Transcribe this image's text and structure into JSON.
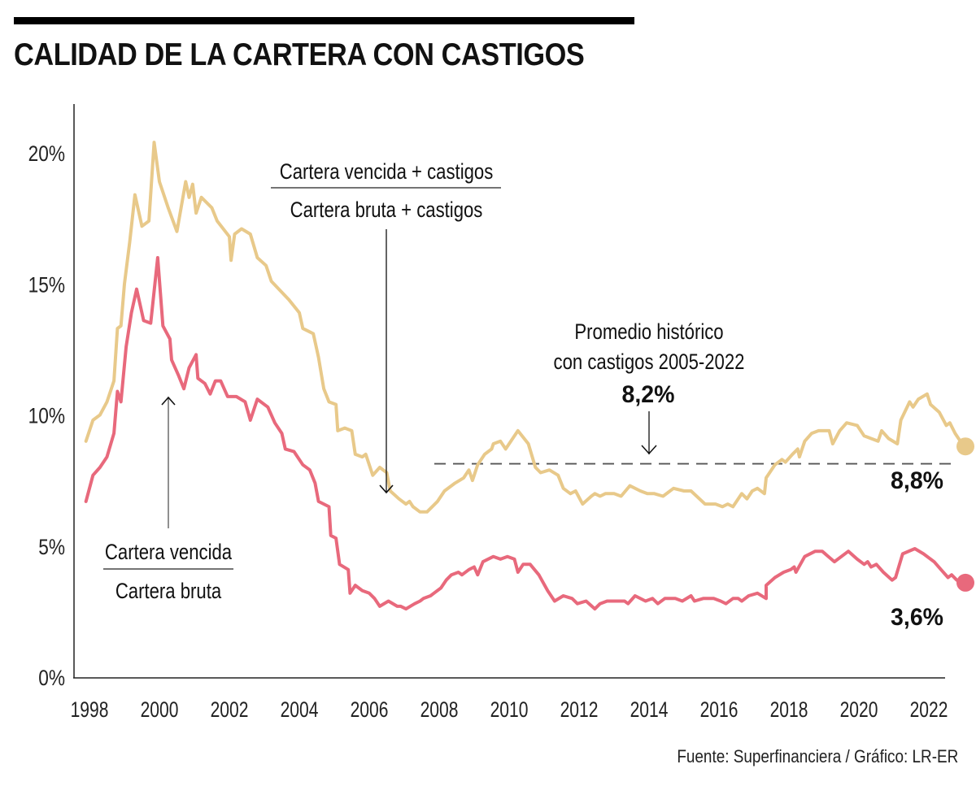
{
  "chart_data": {
    "type": "line",
    "title": "CALIDAD DE LA CARTERA CON CASTIGOS",
    "source": "Fuente: Superfinanciera / Gráfico: LR-ER",
    "xlabel": "",
    "ylabel": "",
    "xlim": [
      1998,
      2022.75
    ],
    "ylim": [
      0,
      20
    ],
    "grid": false,
    "x_ticks": [
      "1998",
      "2000",
      "2002",
      "2004",
      "2006",
      "2008",
      "2010",
      "2012",
      "2014",
      "2016",
      "2018",
      "2020",
      "2022"
    ],
    "y_ticks": [
      "0%",
      "5%",
      "10%",
      "15%",
      "20%"
    ],
    "series": [
      {
        "name": "Cartera vencida + castigos / Cartera bruta + castigos",
        "color": "#e8c98a",
        "end_label": "8,8%",
        "end_value": 8.8,
        "points": [
          [
            1997.9,
            9.0
          ],
          [
            1998.1,
            9.8
          ],
          [
            1998.3,
            10.0
          ],
          [
            1998.5,
            10.5
          ],
          [
            1998.7,
            11.3
          ],
          [
            1998.8,
            13.3
          ],
          [
            1998.9,
            13.4
          ],
          [
            1999.0,
            15.0
          ],
          [
            1999.15,
            16.6
          ],
          [
            1999.3,
            18.4
          ],
          [
            1999.5,
            17.2
          ],
          [
            1999.7,
            17.4
          ],
          [
            1999.85,
            20.4
          ],
          [
            2000.0,
            18.9
          ],
          [
            2000.25,
            17.9
          ],
          [
            2000.5,
            17.0
          ],
          [
            2000.75,
            18.9
          ],
          [
            2000.85,
            18.3
          ],
          [
            2000.95,
            18.8
          ],
          [
            2001.05,
            17.7
          ],
          [
            2001.2,
            18.3
          ],
          [
            2001.5,
            17.9
          ],
          [
            2001.65,
            17.4
          ],
          [
            2002.0,
            16.8
          ],
          [
            2002.05,
            15.9
          ],
          [
            2002.15,
            16.9
          ],
          [
            2002.35,
            17.1
          ],
          [
            2002.6,
            16.9
          ],
          [
            2002.8,
            16.0
          ],
          [
            2003.05,
            15.7
          ],
          [
            2003.2,
            15.1
          ],
          [
            2003.7,
            14.4
          ],
          [
            2004.0,
            13.9
          ],
          [
            2004.1,
            13.3
          ],
          [
            2004.4,
            13.1
          ],
          [
            2004.55,
            12.2
          ],
          [
            2004.7,
            11.0
          ],
          [
            2004.85,
            10.5
          ],
          [
            2005.05,
            10.4
          ],
          [
            2005.1,
            9.4
          ],
          [
            2005.3,
            9.5
          ],
          [
            2005.5,
            9.4
          ],
          [
            2005.6,
            8.5
          ],
          [
            2005.8,
            8.4
          ],
          [
            2005.9,
            8.5
          ],
          [
            2006.1,
            7.7
          ],
          [
            2006.3,
            8.0
          ],
          [
            2006.5,
            7.8
          ],
          [
            2006.6,
            7.1
          ],
          [
            2006.85,
            6.8
          ],
          [
            2007.05,
            6.6
          ],
          [
            2007.15,
            6.7
          ],
          [
            2007.25,
            6.5
          ],
          [
            2007.45,
            6.3
          ],
          [
            2007.65,
            6.3
          ],
          [
            2007.95,
            6.7
          ],
          [
            2008.15,
            7.1
          ],
          [
            2008.45,
            7.4
          ],
          [
            2008.7,
            7.6
          ],
          [
            2008.85,
            7.9
          ],
          [
            2008.95,
            7.5
          ],
          [
            2009.1,
            8.1
          ],
          [
            2009.3,
            8.5
          ],
          [
            2009.5,
            8.7
          ],
          [
            2009.55,
            8.9
          ],
          [
            2009.75,
            9.0
          ],
          [
            2009.9,
            8.7
          ],
          [
            2010.25,
            9.4
          ],
          [
            2010.55,
            8.9
          ],
          [
            2010.75,
            8.0
          ],
          [
            2010.9,
            7.8
          ],
          [
            2011.15,
            7.9
          ],
          [
            2011.4,
            7.7
          ],
          [
            2011.55,
            7.2
          ],
          [
            2011.75,
            7.0
          ],
          [
            2011.9,
            7.1
          ],
          [
            2012.1,
            6.6
          ],
          [
            2012.35,
            6.9
          ],
          [
            2012.45,
            7.0
          ],
          [
            2012.6,
            6.9
          ],
          [
            2012.75,
            7.0
          ],
          [
            2013.0,
            7.0
          ],
          [
            2013.2,
            6.9
          ],
          [
            2013.45,
            7.3
          ],
          [
            2013.75,
            7.1
          ],
          [
            2013.95,
            7.0
          ],
          [
            2014.15,
            7.0
          ],
          [
            2014.4,
            6.9
          ],
          [
            2014.7,
            7.2
          ],
          [
            2015.0,
            7.1
          ],
          [
            2015.2,
            7.1
          ],
          [
            2015.6,
            6.6
          ],
          [
            2015.9,
            6.6
          ],
          [
            2016.1,
            6.5
          ],
          [
            2016.25,
            6.6
          ],
          [
            2016.4,
            6.5
          ],
          [
            2016.65,
            7.0
          ],
          [
            2016.8,
            6.8
          ],
          [
            2016.95,
            7.1
          ],
          [
            2017.1,
            7.2
          ],
          [
            2017.3,
            7.0
          ],
          [
            2017.35,
            7.6
          ],
          [
            2017.6,
            8.1
          ],
          [
            2017.8,
            8.3
          ],
          [
            2017.9,
            8.2
          ],
          [
            2018.1,
            8.5
          ],
          [
            2018.25,
            8.7
          ],
          [
            2018.3,
            8.4
          ],
          [
            2018.45,
            9.0
          ],
          [
            2018.65,
            9.3
          ],
          [
            2018.85,
            9.4
          ],
          [
            2019.15,
            9.4
          ],
          [
            2019.25,
            8.9
          ],
          [
            2019.45,
            9.4
          ],
          [
            2019.65,
            9.7
          ],
          [
            2019.95,
            9.6
          ],
          [
            2020.15,
            9.2
          ],
          [
            2020.55,
            9.0
          ],
          [
            2020.65,
            9.4
          ],
          [
            2020.85,
            9.1
          ],
          [
            2021.1,
            8.9
          ],
          [
            2021.2,
            9.8
          ],
          [
            2021.45,
            10.5
          ],
          [
            2021.55,
            10.3
          ],
          [
            2021.7,
            10.6
          ],
          [
            2021.95,
            10.8
          ],
          [
            2022.05,
            10.4
          ],
          [
            2022.3,
            10.1
          ],
          [
            2022.5,
            9.6
          ],
          [
            2022.6,
            9.7
          ],
          [
            2022.75,
            9.3
          ],
          [
            2023.0,
            8.8
          ]
        ]
      },
      {
        "name": "Cartera vencida / Cartera bruta",
        "color": "#e8697c",
        "end_label": "3,6%",
        "end_value": 3.6,
        "points": [
          [
            1997.9,
            6.7
          ],
          [
            1998.1,
            7.7
          ],
          [
            1998.3,
            8.0
          ],
          [
            1998.5,
            8.4
          ],
          [
            1998.7,
            9.3
          ],
          [
            1998.8,
            10.9
          ],
          [
            1998.9,
            10.5
          ],
          [
            1999.05,
            12.6
          ],
          [
            1999.2,
            13.9
          ],
          [
            1999.35,
            14.8
          ],
          [
            1999.55,
            13.6
          ],
          [
            1999.75,
            13.5
          ],
          [
            1999.95,
            16.0
          ],
          [
            2000.1,
            13.4
          ],
          [
            2000.3,
            12.9
          ],
          [
            2000.35,
            12.1
          ],
          [
            2000.55,
            11.5
          ],
          [
            2000.7,
            11.0
          ],
          [
            2000.85,
            11.8
          ],
          [
            2001.05,
            12.3
          ],
          [
            2001.1,
            11.4
          ],
          [
            2001.3,
            11.2
          ],
          [
            2001.45,
            10.8
          ],
          [
            2001.6,
            11.3
          ],
          [
            2001.75,
            11.3
          ],
          [
            2001.95,
            10.7
          ],
          [
            2002.2,
            10.7
          ],
          [
            2002.45,
            10.5
          ],
          [
            2002.6,
            9.8
          ],
          [
            2002.8,
            10.6
          ],
          [
            2003.1,
            10.3
          ],
          [
            2003.3,
            9.7
          ],
          [
            2003.5,
            9.3
          ],
          [
            2003.6,
            8.7
          ],
          [
            2003.85,
            8.6
          ],
          [
            2004.1,
            8.1
          ],
          [
            2004.3,
            7.9
          ],
          [
            2004.45,
            7.4
          ],
          [
            2004.55,
            6.7
          ],
          [
            2004.85,
            6.5
          ],
          [
            2004.9,
            5.4
          ],
          [
            2005.05,
            5.3
          ],
          [
            2005.15,
            4.3
          ],
          [
            2005.4,
            4.1
          ],
          [
            2005.45,
            3.2
          ],
          [
            2005.6,
            3.5
          ],
          [
            2005.8,
            3.3
          ],
          [
            2006.0,
            3.2
          ],
          [
            2006.15,
            3.0
          ],
          [
            2006.3,
            2.7
          ],
          [
            2006.55,
            2.9
          ],
          [
            2006.8,
            2.7
          ],
          [
            2006.9,
            2.7
          ],
          [
            2007.05,
            2.6
          ],
          [
            2007.3,
            2.8
          ],
          [
            2007.45,
            2.9
          ],
          [
            2007.55,
            3.0
          ],
          [
            2007.75,
            3.1
          ],
          [
            2007.85,
            3.2
          ],
          [
            2008.05,
            3.4
          ],
          [
            2008.2,
            3.7
          ],
          [
            2008.35,
            3.9
          ],
          [
            2008.55,
            4.0
          ],
          [
            2008.65,
            3.9
          ],
          [
            2008.85,
            4.1
          ],
          [
            2009.0,
            4.2
          ],
          [
            2009.1,
            3.9
          ],
          [
            2009.25,
            4.4
          ],
          [
            2009.55,
            4.6
          ],
          [
            2009.75,
            4.5
          ],
          [
            2009.95,
            4.6
          ],
          [
            2010.15,
            4.5
          ],
          [
            2010.25,
            4.0
          ],
          [
            2010.4,
            4.3
          ],
          [
            2010.6,
            4.3
          ],
          [
            2010.85,
            3.9
          ],
          [
            2011.1,
            3.3
          ],
          [
            2011.3,
            2.9
          ],
          [
            2011.55,
            3.1
          ],
          [
            2011.8,
            3.0
          ],
          [
            2011.95,
            2.8
          ],
          [
            2012.2,
            2.9
          ],
          [
            2012.45,
            2.6
          ],
          [
            2012.6,
            2.8
          ],
          [
            2012.8,
            2.9
          ],
          [
            2013.05,
            2.9
          ],
          [
            2013.3,
            2.9
          ],
          [
            2013.4,
            2.8
          ],
          [
            2013.6,
            3.1
          ],
          [
            2013.9,
            2.9
          ],
          [
            2014.1,
            3.0
          ],
          [
            2014.25,
            2.8
          ],
          [
            2014.45,
            3.0
          ],
          [
            2014.75,
            3.0
          ],
          [
            2014.95,
            2.9
          ],
          [
            2015.2,
            3.1
          ],
          [
            2015.3,
            2.9
          ],
          [
            2015.55,
            3.0
          ],
          [
            2015.85,
            3.0
          ],
          [
            2016.05,
            2.9
          ],
          [
            2016.2,
            2.8
          ],
          [
            2016.4,
            3.0
          ],
          [
            2016.55,
            3.0
          ],
          [
            2016.65,
            2.9
          ],
          [
            2016.85,
            3.1
          ],
          [
            2017.1,
            3.2
          ],
          [
            2017.35,
            3.0
          ],
          [
            2017.35,
            3.5
          ],
          [
            2017.6,
            3.8
          ],
          [
            2017.85,
            4.0
          ],
          [
            2018.05,
            4.1
          ],
          [
            2018.15,
            4.2
          ],
          [
            2018.2,
            4.0
          ],
          [
            2018.45,
            4.6
          ],
          [
            2018.75,
            4.8
          ],
          [
            2018.95,
            4.8
          ],
          [
            2019.3,
            4.4
          ],
          [
            2019.7,
            4.8
          ],
          [
            2019.95,
            4.5
          ],
          [
            2020.15,
            4.3
          ],
          [
            2020.25,
            4.4
          ],
          [
            2020.35,
            4.2
          ],
          [
            2020.5,
            4.3
          ],
          [
            2020.7,
            4.0
          ],
          [
            2020.95,
            3.7
          ],
          [
            2021.05,
            3.8
          ],
          [
            2021.25,
            4.7
          ],
          [
            2021.6,
            4.9
          ],
          [
            2021.85,
            4.7
          ],
          [
            2022.15,
            4.4
          ],
          [
            2022.35,
            4.1
          ],
          [
            2022.55,
            3.8
          ],
          [
            2022.65,
            3.9
          ],
          [
            2022.8,
            3.7
          ],
          [
            2023.0,
            3.6
          ]
        ]
      }
    ],
    "reference_line": {
      "label": "Promedio histórico con castigos 2005-2022",
      "label_line1": "Promedio histórico",
      "label_line2": "con castigos 2005-2022",
      "value": 8.2,
      "value_label": "8,2%",
      "x_start": 2008.0,
      "style": "dashed"
    },
    "annotations": [
      {
        "name": "formula-castigos",
        "numerator": "Cartera vencida + castigos",
        "denominator": "Cartera bruta + castigos",
        "arrow_to": [
          2006.6,
          7.1
        ]
      },
      {
        "name": "formula-basica",
        "numerator": "Cartera vencida",
        "denominator": "Cartera bruta",
        "arrow_to": [
          2000.55,
          10.6
        ]
      }
    ]
  }
}
